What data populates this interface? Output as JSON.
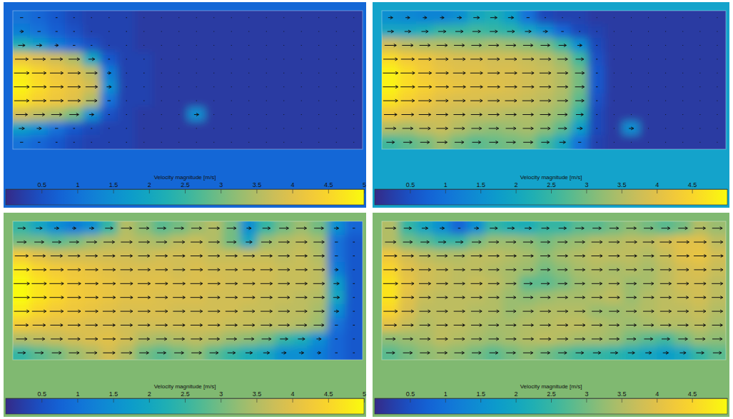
{
  "chart_data": [
    {
      "type": "heatmap",
      "tick_labels": false,
      "colorbar_title": "Velocity magnitude [m/s]",
      "colorbar_range": [
        0,
        5
      ],
      "colorbar_ticks": [
        0.5,
        1,
        1.5,
        2,
        2.5,
        3,
        3.5,
        4,
        4.5,
        5
      ],
      "cells": [
        [
          1.0,
          0.8,
          0.6,
          0.4,
          0.3,
          0.3,
          0.3,
          0.2,
          0.2,
          0.2,
          0.2,
          0.2,
          0.2,
          0.2,
          0.2,
          0.2,
          0.2,
          0.2,
          0.2,
          0.2
        ],
        [
          1.2,
          1.0,
          0.7,
          0.5,
          0.3,
          0.3,
          0.3,
          0.2,
          0.2,
          0.2,
          0.2,
          0.2,
          0.2,
          0.2,
          0.2,
          0.2,
          0.2,
          0.2,
          0.2,
          0.2
        ],
        [
          2.2,
          1.8,
          1.2,
          0.8,
          0.5,
          0.3,
          0.3,
          0.2,
          0.2,
          0.2,
          0.2,
          0.2,
          0.2,
          0.2,
          0.2,
          0.2,
          0.2,
          0.2,
          0.2,
          0.2
        ],
        [
          4.2,
          4.0,
          3.8,
          3.5,
          2.0,
          0.6,
          0.3,
          0.3,
          0.2,
          0.2,
          0.2,
          0.2,
          0.2,
          0.2,
          0.2,
          0.2,
          0.2,
          0.2,
          0.2,
          0.2
        ],
        [
          4.8,
          4.5,
          4.2,
          4.0,
          3.6,
          1.2,
          0.3,
          0.3,
          0.2,
          0.2,
          0.2,
          0.2,
          0.2,
          0.2,
          0.2,
          0.2,
          0.2,
          0.2,
          0.2,
          0.2
        ],
        [
          4.9,
          4.6,
          4.3,
          4.1,
          3.8,
          1.5,
          0.3,
          0.3,
          0.2,
          0.2,
          0.2,
          0.2,
          0.2,
          0.2,
          0.2,
          0.2,
          0.2,
          0.2,
          0.2,
          0.2
        ],
        [
          4.7,
          4.4,
          4.2,
          4.0,
          3.5,
          1.0,
          0.3,
          0.3,
          0.2,
          0.2,
          0.2,
          0.2,
          0.2,
          0.2,
          0.2,
          0.2,
          0.2,
          0.2,
          0.2,
          0.2
        ],
        [
          3.8,
          3.6,
          3.4,
          3.0,
          1.5,
          0.5,
          0.3,
          0.2,
          0.2,
          0.2,
          1.5,
          0.2,
          0.2,
          0.2,
          0.2,
          0.2,
          0.2,
          0.2,
          0.2,
          0.2
        ],
        [
          1.8,
          1.5,
          1.0,
          0.6,
          0.4,
          0.3,
          0.3,
          0.2,
          0.2,
          0.2,
          0.2,
          0.2,
          0.2,
          0.2,
          0.2,
          0.2,
          0.2,
          0.2,
          0.2,
          0.2
        ],
        [
          1.0,
          0.8,
          0.6,
          0.4,
          0.3,
          0.3,
          0.3,
          0.2,
          0.2,
          0.2,
          0.2,
          0.2,
          0.2,
          0.2,
          0.2,
          0.2,
          0.2,
          0.2,
          0.2,
          0.2
        ]
      ]
    },
    {
      "type": "heatmap",
      "tick_labels": false,
      "colorbar_title": "Velocity magnitude [m/s]",
      "colorbar_range": [
        0,
        5
      ],
      "colorbar_ticks": [
        0.5,
        1,
        1.5,
        2,
        2.5,
        3,
        3.5,
        4,
        4.5
      ],
      "cells": [
        [
          1.5,
          1.4,
          1.3,
          1.3,
          1.5,
          2.0,
          2.2,
          1.8,
          1.0,
          0.4,
          0.3,
          0.3,
          0.2,
          0.2,
          0.2,
          0.2,
          0.2,
          0.2,
          0.2,
          0.2
        ],
        [
          2.0,
          2.0,
          2.2,
          2.5,
          2.5,
          2.6,
          2.5,
          2.4,
          2.0,
          1.5,
          0.8,
          0.4,
          0.3,
          0.2,
          0.2,
          0.2,
          0.2,
          0.2,
          0.2,
          0.2
        ],
        [
          3.8,
          3.6,
          3.5,
          3.5,
          3.4,
          3.3,
          3.4,
          3.3,
          3.2,
          3.0,
          2.5,
          1.5,
          0.4,
          0.2,
          0.2,
          0.2,
          0.2,
          0.2,
          0.2,
          0.2
        ],
        [
          4.6,
          4.3,
          4.2,
          4.0,
          3.9,
          3.9,
          3.8,
          3.8,
          3.7,
          3.6,
          3.3,
          2.6,
          0.5,
          0.2,
          0.2,
          0.2,
          0.2,
          0.2,
          0.2,
          0.2
        ],
        [
          4.9,
          4.6,
          4.3,
          4.1,
          4.0,
          4.0,
          3.9,
          3.9,
          3.8,
          3.7,
          3.5,
          3.0,
          0.6,
          0.2,
          0.2,
          0.2,
          0.2,
          0.2,
          0.2,
          0.2
        ],
        [
          4.9,
          4.6,
          4.4,
          4.2,
          4.1,
          4.0,
          4.0,
          3.9,
          3.8,
          3.7,
          3.5,
          3.0,
          0.6,
          0.2,
          0.2,
          0.2,
          0.2,
          0.2,
          0.2,
          0.2
        ],
        [
          4.7,
          4.4,
          4.2,
          4.0,
          3.9,
          3.9,
          3.8,
          3.8,
          3.7,
          3.6,
          3.4,
          2.8,
          0.5,
          0.2,
          0.2,
          0.2,
          0.2,
          0.2,
          0.2,
          0.2
        ],
        [
          4.2,
          4.0,
          3.9,
          3.8,
          3.7,
          3.6,
          3.6,
          3.5,
          3.5,
          3.4,
          3.2,
          2.4,
          0.4,
          0.2,
          0.2,
          0.2,
          0.2,
          0.2,
          0.2,
          0.2
        ],
        [
          3.5,
          3.4,
          3.6,
          3.7,
          3.5,
          3.3,
          3.2,
          3.3,
          3.4,
          3.2,
          2.8,
          1.8,
          0.4,
          0.2,
          1.5,
          0.2,
          0.2,
          0.2,
          0.2,
          0.2
        ],
        [
          2.6,
          2.8,
          3.0,
          3.3,
          3.0,
          2.8,
          2.9,
          3.0,
          3.1,
          2.6,
          2.0,
          1.0,
          0.3,
          0.2,
          0.2,
          0.2,
          0.2,
          0.2,
          0.2,
          0.2
        ]
      ]
    },
    {
      "type": "heatmap",
      "tick_labels": false,
      "colorbar_title": "Velocity magnitude [m/s]",
      "colorbar_range": [
        0,
        5
      ],
      "colorbar_ticks": [
        0.5,
        1,
        1.5,
        2,
        2.5,
        3,
        3.5,
        4,
        4.5,
        5
      ],
      "cells": [
        [
          2.5,
          2.0,
          1.5,
          1.2,
          1.5,
          2.5,
          3.5,
          3.2,
          2.8,
          3.0,
          3.3,
          3.5,
          3.0,
          1.5,
          2.5,
          3.0,
          3.3,
          3.0,
          1.5,
          0.8
        ],
        [
          3.0,
          3.0,
          2.8,
          3.0,
          3.3,
          3.5,
          3.6,
          3.5,
          3.4,
          3.6,
          3.7,
          3.5,
          3.0,
          2.0,
          3.3,
          3.5,
          3.6,
          3.4,
          1.0,
          0.6
        ],
        [
          4.3,
          4.0,
          3.8,
          3.8,
          3.8,
          3.8,
          3.8,
          3.7,
          3.8,
          3.8,
          3.8,
          3.7,
          3.7,
          3.7,
          3.7,
          3.6,
          3.7,
          3.5,
          1.0,
          0.6
        ],
        [
          4.8,
          4.5,
          4.3,
          4.2,
          4.1,
          4.0,
          3.9,
          3.9,
          3.9,
          3.8,
          3.9,
          3.8,
          3.8,
          3.8,
          3.8,
          3.7,
          3.7,
          3.6,
          1.2,
          0.6
        ],
        [
          5.0,
          4.7,
          4.5,
          4.3,
          4.2,
          4.1,
          4.0,
          4.0,
          4.0,
          3.9,
          3.9,
          3.9,
          3.8,
          3.8,
          3.8,
          3.7,
          3.7,
          3.6,
          1.8,
          0.6
        ],
        [
          5.0,
          4.7,
          4.5,
          4.3,
          4.2,
          4.1,
          4.0,
          4.0,
          3.9,
          3.9,
          3.9,
          3.8,
          3.8,
          3.8,
          3.7,
          3.7,
          3.6,
          3.5,
          2.0,
          0.6
        ],
        [
          4.8,
          4.5,
          4.3,
          4.2,
          4.1,
          4.0,
          3.9,
          3.9,
          3.9,
          3.8,
          3.8,
          3.8,
          3.8,
          3.7,
          3.7,
          3.6,
          3.6,
          3.4,
          1.5,
          0.6
        ],
        [
          4.3,
          4.1,
          4.0,
          4.0,
          3.9,
          3.9,
          3.8,
          3.8,
          3.8,
          3.8,
          3.8,
          3.8,
          3.7,
          3.7,
          3.6,
          3.6,
          3.5,
          3.3,
          1.0,
          0.6
        ],
        [
          3.5,
          3.6,
          3.7,
          3.8,
          3.9,
          4.0,
          3.8,
          3.5,
          3.4,
          3.5,
          3.6,
          3.5,
          3.3,
          3.2,
          3.0,
          2.5,
          2.2,
          1.5,
          0.8,
          0.6
        ],
        [
          2.5,
          2.8,
          3.0,
          3.3,
          3.5,
          3.8,
          3.5,
          3.0,
          2.8,
          3.0,
          3.2,
          2.8,
          2.5,
          2.2,
          2.0,
          1.5,
          1.5,
          1.2,
          0.8,
          0.6
        ]
      ]
    },
    {
      "type": "heatmap",
      "tick_labels": false,
      "colorbar_title": "Velocity magnitude [m/s]",
      "colorbar_range": [
        0,
        5
      ],
      "colorbar_ticks": [
        0.5,
        1,
        1.5,
        2,
        2.5,
        3,
        3.5,
        4,
        4.5
      ],
      "cells": [
        [
          3.5,
          2.5,
          2.0,
          1.5,
          0.8,
          1.5,
          2.5,
          2.3,
          2.2,
          2.5,
          2.5,
          2.8,
          2.8,
          3.0,
          3.2,
          3.0,
          2.8,
          3.0,
          3.5,
          3.3
        ],
        [
          3.5,
          3.0,
          2.8,
          2.5,
          2.5,
          3.0,
          3.3,
          3.3,
          3.2,
          3.0,
          3.2,
          3.3,
          3.5,
          3.5,
          3.6,
          3.6,
          3.8,
          4.0,
          4.0,
          3.6
        ],
        [
          4.2,
          3.8,
          3.6,
          3.5,
          3.5,
          3.6,
          3.6,
          3.5,
          3.4,
          3.2,
          3.4,
          3.5,
          3.6,
          3.6,
          3.6,
          3.5,
          3.7,
          4.0,
          4.1,
          3.8
        ],
        [
          4.5,
          4.0,
          3.8,
          3.7,
          3.6,
          3.6,
          3.5,
          3.4,
          3.3,
          3.0,
          3.2,
          3.4,
          3.5,
          3.4,
          3.5,
          3.4,
          3.6,
          3.8,
          3.9,
          3.7
        ],
        [
          4.7,
          4.1,
          3.8,
          3.7,
          3.6,
          3.7,
          3.6,
          3.4,
          2.8,
          2.8,
          3.0,
          3.3,
          3.4,
          3.5,
          3.3,
          3.4,
          3.6,
          3.8,
          3.8,
          3.6
        ],
        [
          4.7,
          4.0,
          3.7,
          3.6,
          3.6,
          3.6,
          3.5,
          3.3,
          3.2,
          3.3,
          3.4,
          3.4,
          3.5,
          3.6,
          3.3,
          3.5,
          3.6,
          3.7,
          3.8,
          3.6
        ],
        [
          4.5,
          3.9,
          3.6,
          3.6,
          3.6,
          3.5,
          3.5,
          3.3,
          3.4,
          3.5,
          3.5,
          3.5,
          3.3,
          3.3,
          3.4,
          3.5,
          3.6,
          3.6,
          3.7,
          3.5
        ],
        [
          4.0,
          3.7,
          3.5,
          3.6,
          3.6,
          3.5,
          3.4,
          3.4,
          3.5,
          3.5,
          3.6,
          3.6,
          3.5,
          3.4,
          3.3,
          3.4,
          3.5,
          3.5,
          3.6,
          3.4
        ],
        [
          3.2,
          3.3,
          3.4,
          3.6,
          3.5,
          3.4,
          3.3,
          3.4,
          3.5,
          3.6,
          3.5,
          3.4,
          3.4,
          3.3,
          3.0,
          2.8,
          2.6,
          3.0,
          3.3,
          3.2
        ],
        [
          2.8,
          3.0,
          3.2,
          3.3,
          3.2,
          3.0,
          2.8,
          3.0,
          3.2,
          3.0,
          2.8,
          2.6,
          2.5,
          2.4,
          2.2,
          2.0,
          1.8,
          2.0,
          2.5,
          2.8
        ]
      ]
    }
  ]
}
